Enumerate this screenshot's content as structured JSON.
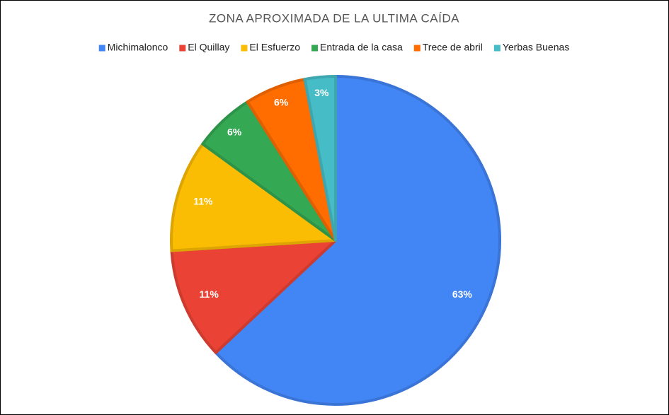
{
  "chart_data": {
    "type": "pie",
    "title": "ZONA APROXIMADA DE LA ULTIMA CAÍDA",
    "categories": [
      "Michimalonco",
      "El Quillay",
      "El Esfuerzo",
      "Entrada de la casa",
      "Trece de abril",
      "Yerbas Buenas"
    ],
    "values": [
      63,
      11,
      11,
      6,
      6,
      3
    ],
    "value_labels": [
      "63%",
      "11%",
      "11%",
      "6%",
      "6%",
      "3%"
    ],
    "colors": [
      "#4285f4",
      "#ea4335",
      "#fbbc04",
      "#34a853",
      "#ff6d01",
      "#46bdc6"
    ],
    "legend": "top"
  }
}
